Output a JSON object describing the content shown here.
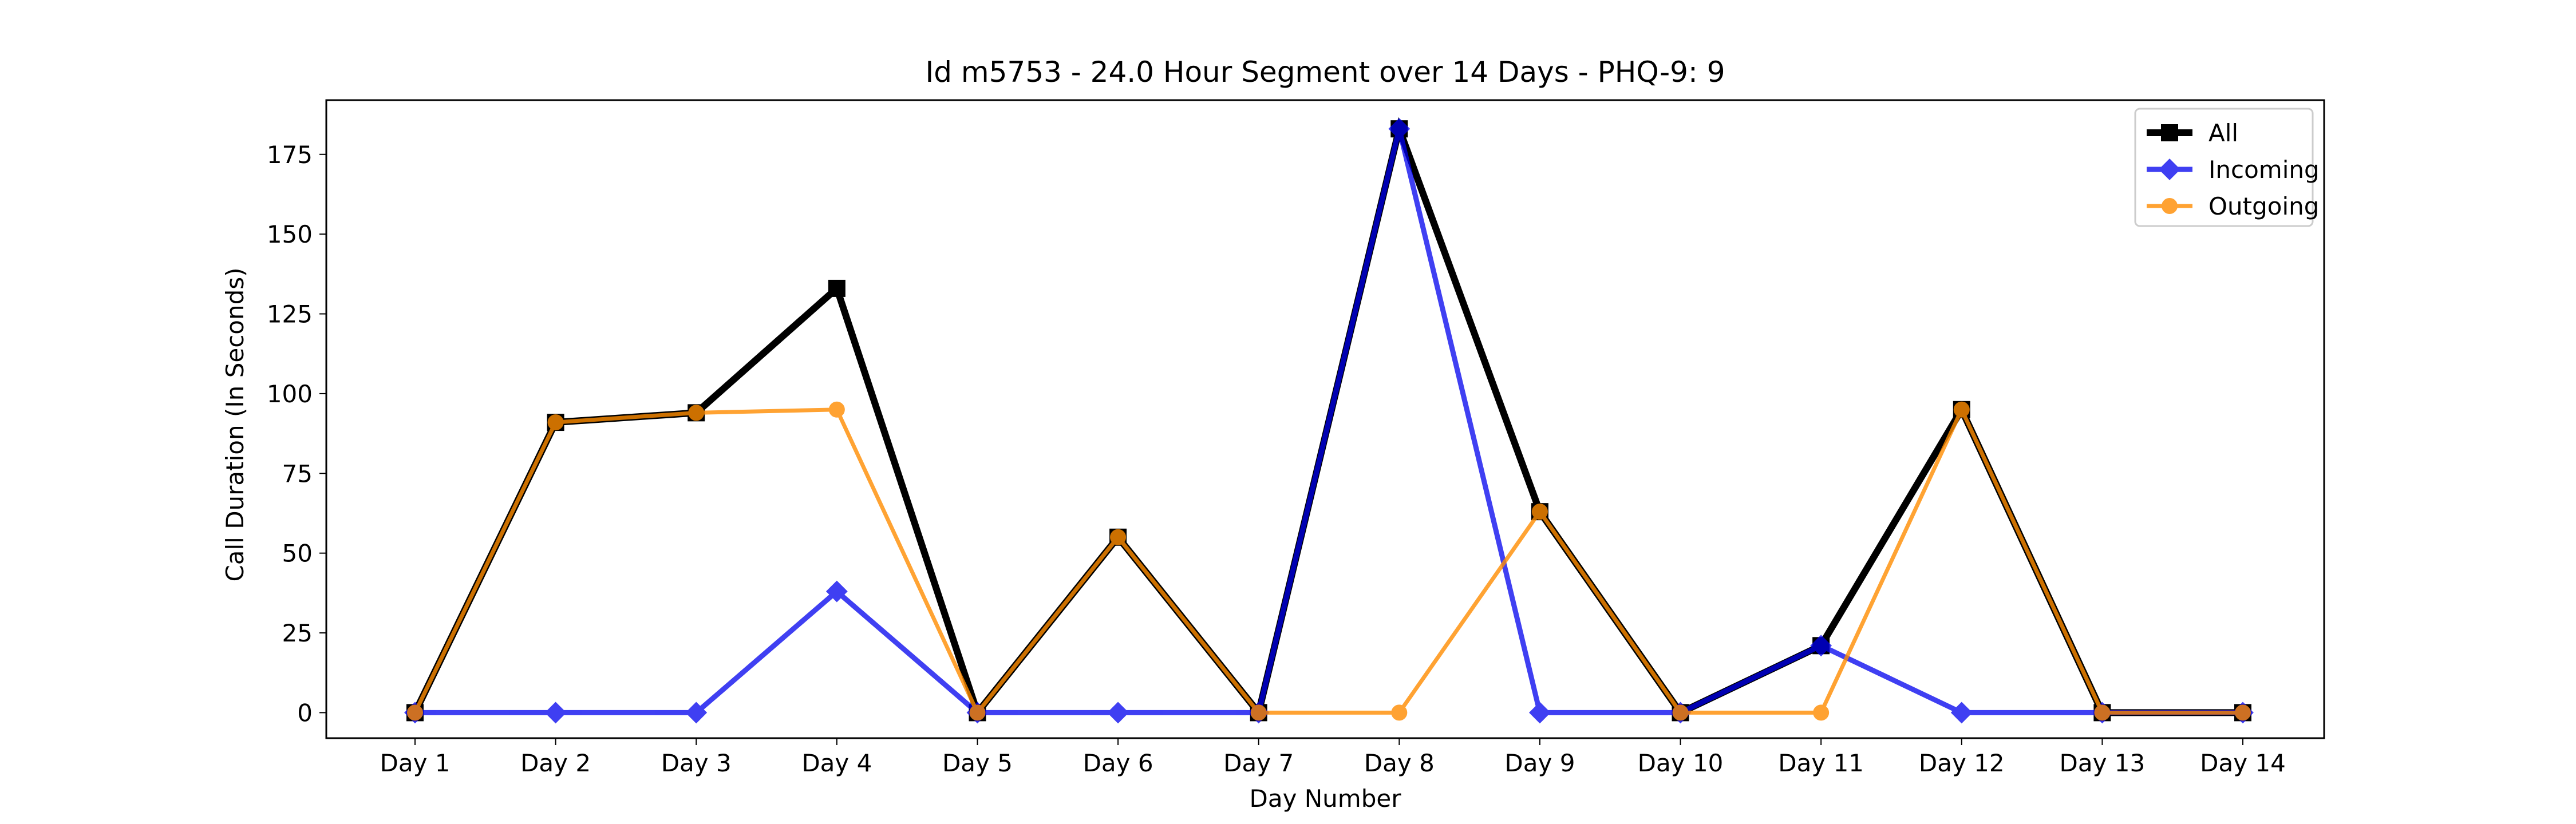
{
  "chart_data": {
    "type": "line",
    "title": "Id m5753 - 24.0 Hour Segment over 14 Days - PHQ-9: 9",
    "xlabel": "Day Number",
    "ylabel": "Call Duration (In Seconds)",
    "categories": [
      "Day 1",
      "Day 2",
      "Day 3",
      "Day 4",
      "Day 5",
      "Day 6",
      "Day 7",
      "Day 8",
      "Day 9",
      "Day 10",
      "Day 11",
      "Day 12",
      "Day 13",
      "Day 14"
    ],
    "ylim": [
      -8,
      192
    ],
    "yticks": [
      0,
      25,
      50,
      75,
      100,
      125,
      150,
      175
    ],
    "grid": false,
    "legend_position": "top-right",
    "series": [
      {
        "name": "All",
        "color": "#000000",
        "marker": "square",
        "values": [
          0,
          91,
          94,
          133,
          0,
          55,
          0,
          183,
          63,
          0,
          21,
          95,
          0,
          0
        ]
      },
      {
        "name": "Incoming",
        "color": "#0000ee",
        "marker": "diamond",
        "values": [
          0,
          0,
          0,
          38,
          0,
          0,
          0,
          183,
          0,
          0,
          21,
          0,
          0,
          0
        ]
      },
      {
        "name": "Outgoing",
        "color": "#ff8c00",
        "marker": "circle",
        "values": [
          0,
          91,
          94,
          95,
          0,
          55,
          0,
          0,
          63,
          0,
          0,
          95,
          0,
          0
        ]
      }
    ]
  }
}
